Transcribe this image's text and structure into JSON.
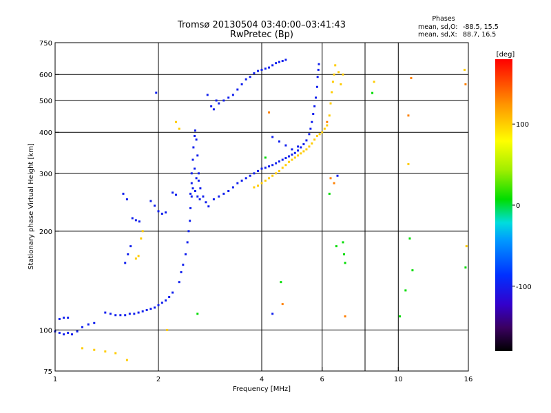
{
  "chart_data": {
    "type": "scatter",
    "title": "Tromsø 20130504 03:40:00–03:41:43",
    "subtitle": "RwPretec (Bp)",
    "xlabel": "Frequency [MHz]",
    "ylabel": "Stationary phase Virtual Height [km]",
    "xscale": "log",
    "yscale": "log",
    "xlim": [
      1,
      16
    ],
    "ylim": [
      75,
      750
    ],
    "x_ticks": [
      1,
      2,
      4,
      6,
      10,
      16
    ],
    "y_ticks": [
      75,
      100,
      200,
      300,
      400,
      500,
      600,
      750
    ],
    "x_gridlines": [
      2,
      4,
      6,
      8,
      10
    ],
    "y_gridlines": [
      100,
      200,
      300,
      400,
      500,
      600
    ],
    "grid": true,
    "phase_header": "Phases",
    "phase_stats": [
      {
        "label": "mean, sd,O:",
        "values": "-88.5, 15.5"
      },
      {
        "label": "mean, sd,X:",
        "values": "88.7, 16.5"
      }
    ],
    "colorbar": {
      "title": "[deg]",
      "min": -180,
      "max": 180,
      "ticks": [
        -100,
        0,
        100
      ],
      "tick_labels": [
        "-100",
        "0",
        "100"
      ],
      "colormap": "black-purple-blue-cyan-green-yellow-orange-red"
    },
    "series": [
      {
        "mode": "O",
        "phase": -100,
        "points": [
          [
            1.0,
            99
          ],
          [
            1.03,
            98
          ],
          [
            1.06,
            97
          ],
          [
            1.09,
            98
          ],
          [
            1.12,
            97
          ],
          [
            1.16,
            99
          ],
          [
            1.2,
            102
          ],
          [
            1.25,
            104
          ],
          [
            1.3,
            105
          ],
          [
            1.03,
            108
          ],
          [
            1.06,
            109
          ],
          [
            1.09,
            109
          ],
          [
            1.4,
            113
          ],
          [
            1.45,
            112
          ],
          [
            1.5,
            111
          ],
          [
            1.55,
            111
          ],
          [
            1.6,
            111
          ],
          [
            1.65,
            112
          ],
          [
            1.7,
            112
          ],
          [
            1.75,
            113
          ],
          [
            1.8,
            114
          ],
          [
            1.85,
            115
          ],
          [
            1.9,
            116
          ],
          [
            1.95,
            117
          ],
          [
            2.0,
            119
          ],
          [
            2.05,
            121
          ],
          [
            2.1,
            123
          ],
          [
            2.15,
            126
          ],
          [
            2.2,
            130
          ],
          [
            1.58,
            260
          ],
          [
            1.62,
            250
          ],
          [
            1.6,
            160
          ],
          [
            1.63,
            170
          ],
          [
            1.66,
            180
          ],
          [
            1.68,
            219
          ],
          [
            1.72,
            216
          ],
          [
            1.76,
            214
          ],
          [
            1.9,
            247
          ],
          [
            1.95,
            239
          ],
          [
            2.0,
            230
          ],
          [
            2.05,
            226
          ],
          [
            2.1,
            228
          ],
          [
            1.97,
            528
          ],
          [
            2.2,
            262
          ],
          [
            2.25,
            258
          ],
          [
            2.3,
            140
          ],
          [
            2.33,
            150
          ],
          [
            2.36,
            158
          ],
          [
            2.4,
            170
          ],
          [
            2.43,
            185
          ],
          [
            2.45,
            200
          ],
          [
            2.47,
            215
          ],
          [
            2.48,
            235
          ],
          [
            2.5,
            255
          ],
          [
            2.5,
            280
          ],
          [
            2.5,
            300
          ],
          [
            2.52,
            330
          ],
          [
            2.53,
            360
          ],
          [
            2.55,
            390
          ],
          [
            2.56,
            405
          ],
          [
            2.58,
            380
          ],
          [
            2.6,
            340
          ],
          [
            2.62,
            300
          ],
          [
            2.65,
            270
          ],
          [
            2.7,
            255
          ],
          [
            2.75,
            245
          ],
          [
            2.8,
            238
          ],
          [
            2.48,
            260
          ],
          [
            2.52,
            270
          ],
          [
            2.56,
            265
          ],
          [
            2.6,
            255
          ],
          [
            2.64,
            250
          ],
          [
            2.58,
            290
          ],
          [
            2.62,
            285
          ],
          [
            2.55,
            310
          ],
          [
            2.78,
            520
          ],
          [
            2.85,
            480
          ],
          [
            2.9,
            470
          ],
          [
            2.95,
            500
          ],
          [
            3.0,
            490
          ],
          [
            3.1,
            500
          ],
          [
            3.2,
            510
          ],
          [
            3.3,
            520
          ],
          [
            3.4,
            540
          ],
          [
            3.5,
            560
          ],
          [
            3.6,
            580
          ],
          [
            3.7,
            590
          ],
          [
            3.8,
            605
          ],
          [
            3.9,
            615
          ],
          [
            4.0,
            620
          ],
          [
            4.1,
            625
          ],
          [
            4.2,
            630
          ],
          [
            4.3,
            640
          ],
          [
            4.4,
            650
          ],
          [
            4.5,
            655
          ],
          [
            4.6,
            660
          ],
          [
            4.7,
            665
          ],
          [
            2.9,
            250
          ],
          [
            3.0,
            255
          ],
          [
            3.1,
            260
          ],
          [
            3.2,
            265
          ],
          [
            3.3,
            272
          ],
          [
            3.4,
            280
          ],
          [
            3.5,
            285
          ],
          [
            3.6,
            290
          ],
          [
            3.7,
            295
          ],
          [
            3.8,
            300
          ],
          [
            3.9,
            305
          ],
          [
            4.0,
            310
          ],
          [
            4.1,
            312
          ],
          [
            4.2,
            315
          ],
          [
            4.3,
            318
          ],
          [
            4.4,
            322
          ],
          [
            4.5,
            326
          ],
          [
            4.6,
            330
          ],
          [
            4.7,
            334
          ],
          [
            4.8,
            338
          ],
          [
            4.9,
            342
          ],
          [
            5.0,
            346
          ],
          [
            5.1,
            352
          ],
          [
            5.2,
            360
          ],
          [
            5.3,
            368
          ],
          [
            5.4,
            378
          ],
          [
            5.5,
            395
          ],
          [
            5.55,
            410
          ],
          [
            5.6,
            430
          ],
          [
            5.65,
            455
          ],
          [
            5.7,
            480
          ],
          [
            5.75,
            510
          ],
          [
            5.8,
            550
          ],
          [
            5.82,
            590
          ],
          [
            5.85,
            620
          ],
          [
            5.87,
            645
          ],
          [
            4.5,
            375
          ],
          [
            4.7,
            365
          ],
          [
            4.9,
            355
          ],
          [
            5.1,
            362
          ],
          [
            4.3,
            387
          ],
          [
            6.65,
            295
          ],
          [
            4.3,
            112
          ]
        ]
      },
      {
        "mode": "X",
        "phase": 100,
        "points": [
          [
            1.2,
            88
          ],
          [
            1.3,
            87
          ],
          [
            1.4,
            86
          ],
          [
            1.5,
            85
          ],
          [
            1.62,
            81
          ],
          [
            1.72,
            165
          ],
          [
            1.75,
            168
          ],
          [
            1.78,
            190
          ],
          [
            1.8,
            200
          ],
          [
            2.25,
            430
          ],
          [
            2.3,
            410
          ],
          [
            2.12,
            100
          ],
          [
            3.8,
            272
          ],
          [
            3.9,
            275
          ],
          [
            4.0,
            280
          ],
          [
            4.1,
            285
          ],
          [
            4.2,
            290
          ],
          [
            4.3,
            295
          ],
          [
            4.4,
            300
          ],
          [
            4.5,
            305
          ],
          [
            4.6,
            312
          ],
          [
            4.7,
            318
          ],
          [
            4.8,
            325
          ],
          [
            4.9,
            330
          ],
          [
            5.0,
            335
          ],
          [
            5.1,
            340
          ],
          [
            5.2,
            345
          ],
          [
            5.3,
            350
          ],
          [
            5.4,
            355
          ],
          [
            5.5,
            362
          ],
          [
            5.6,
            370
          ],
          [
            5.7,
            380
          ],
          [
            5.8,
            390
          ],
          [
            5.9,
            395
          ],
          [
            6.0,
            400
          ],
          [
            6.1,
            410
          ],
          [
            6.2,
            420
          ],
          [
            6.3,
            450
          ],
          [
            6.35,
            490
          ],
          [
            6.4,
            530
          ],
          [
            6.45,
            570
          ],
          [
            6.5,
            600
          ],
          [
            6.55,
            640
          ],
          [
            6.7,
            610
          ],
          [
            6.8,
            560
          ],
          [
            6.9,
            600
          ],
          [
            8.5,
            570
          ],
          [
            10.7,
            320
          ],
          [
            15.6,
            620
          ],
          [
            15.8,
            180
          ]
        ]
      },
      {
        "mode": "scattered",
        "phase": 0,
        "points": [
          [
            4.1,
            335
          ],
          [
            6.9,
            185
          ],
          [
            6.95,
            170
          ],
          [
            7.0,
            160
          ],
          [
            8.4,
            527
          ],
          [
            10.1,
            110
          ],
          [
            10.8,
            190
          ],
          [
            11.0,
            152
          ],
          [
            15.7,
            155
          ],
          [
            6.6,
            180
          ],
          [
            4.55,
            140
          ],
          [
            2.6,
            112
          ],
          [
            6.3,
            260
          ],
          [
            10.5,
            132
          ]
        ]
      },
      {
        "mode": "noise",
        "phase": 130,
        "points": [
          [
            4.2,
            460
          ],
          [
            4.6,
            120
          ],
          [
            6.2,
            430
          ],
          [
            6.35,
            290
          ],
          [
            6.5,
            280
          ],
          [
            10.9,
            585
          ],
          [
            10.7,
            450
          ],
          [
            15.7,
            560
          ],
          [
            7.0,
            110
          ]
        ]
      }
    ]
  }
}
